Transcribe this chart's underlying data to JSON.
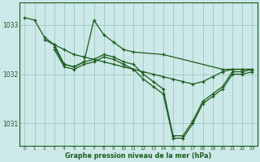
{
  "bg_color": "#cce8e8",
  "grid_color": "#99ccbb",
  "line_color": "#1a5c1a",
  "xlabel": "Graphe pression niveau de la mer (hPa)",
  "xlim": [
    -0.5,
    23.5
  ],
  "ylim": [
    1030.55,
    1033.45
  ],
  "yticks": [
    1031,
    1032,
    1033
  ],
  "xticks": [
    0,
    1,
    2,
    3,
    4,
    5,
    6,
    7,
    8,
    9,
    10,
    11,
    12,
    13,
    14,
    15,
    16,
    17,
    18,
    19,
    20,
    21,
    22,
    23
  ],
  "series": [
    {
      "x": [
        0,
        1,
        2,
        3,
        4,
        5,
        6,
        7,
        8,
        9,
        10,
        11,
        12,
        13,
        14,
        15,
        16,
        17,
        18,
        19,
        20,
        21,
        22,
        23
      ],
      "y": [
        1033.15,
        1033.1,
        1032.75,
        1032.6,
        1032.5,
        1032.4,
        1032.35,
        1032.3,
        1032.25,
        1032.2,
        1032.15,
        1032.1,
        1032.05,
        1032.0,
        1031.95,
        1031.9,
        1031.85,
        1031.8,
        1031.85,
        1031.95,
        1032.05,
        1032.1,
        1032.1,
        1032.1
      ]
    },
    {
      "x": [
        2,
        3,
        4,
        5,
        6,
        7,
        8,
        9,
        10,
        11,
        14,
        20,
        21,
        22,
        23
      ],
      "y": [
        1032.7,
        1032.6,
        1032.2,
        1032.15,
        1032.25,
        1033.1,
        1032.8,
        1032.65,
        1032.5,
        1032.45,
        1032.4,
        1032.1,
        1032.1,
        1032.1,
        1032.1
      ]
    },
    {
      "x": [
        3,
        4,
        5,
        6,
        7,
        8,
        9,
        10,
        11,
        12,
        13,
        14,
        15,
        16,
        17,
        18,
        19,
        20,
        21,
        22,
        23
      ],
      "y": [
        1032.55,
        1032.2,
        1032.15,
        1032.25,
        1032.3,
        1032.4,
        1032.35,
        1032.25,
        1032.2,
        1032.0,
        1031.85,
        1031.7,
        1030.75,
        1030.75,
        1031.05,
        1031.45,
        1031.6,
        1031.75,
        1032.05,
        1032.05,
        1032.1
      ]
    },
    {
      "x": [
        3,
        4,
        5,
        6,
        7,
        8,
        9,
        10,
        11,
        12,
        13,
        14,
        15,
        16,
        17,
        18,
        19,
        20,
        21,
        22,
        23
      ],
      "y": [
        1032.5,
        1032.15,
        1032.1,
        1032.2,
        1032.25,
        1032.35,
        1032.3,
        1032.2,
        1032.1,
        1031.9,
        1031.75,
        1031.6,
        1030.7,
        1030.7,
        1031.0,
        1031.4,
        1031.55,
        1031.7,
        1032.0,
        1032.0,
        1032.05
      ]
    }
  ]
}
